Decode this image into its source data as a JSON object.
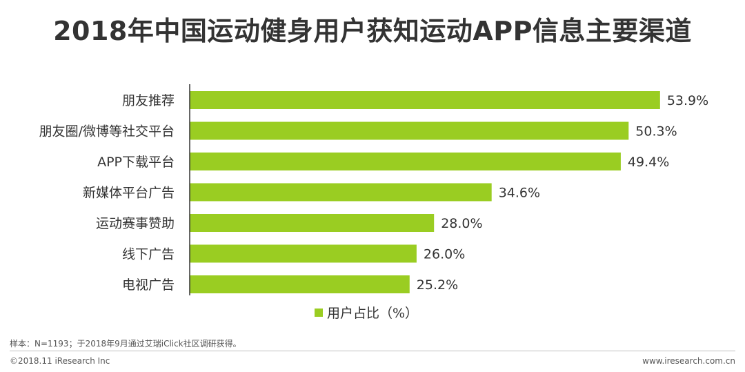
{
  "colors": {
    "bar": "#9ACD22",
    "axis": "#333333",
    "text": "#333333"
  },
  "chart_data": {
    "type": "bar",
    "orientation": "horizontal",
    "title": "2018年中国运动健身用户获知运动APP信息主要渠道",
    "categories": [
      "朋友推荐",
      "朋友圈/微博等社交平台",
      "APP下载平台",
      "新媒体平台广告",
      "运动赛事赞助",
      "线下广告",
      "电视广告"
    ],
    "series": [
      {
        "name": "用户占比（%）",
        "values": [
          53.9,
          50.3,
          49.4,
          34.6,
          28.0,
          26.0,
          25.2
        ]
      }
    ],
    "value_format": "{v}%",
    "xlim": [
      0,
      60
    ],
    "grid": false,
    "legend_position": "bottom-center"
  },
  "footnote": "样本：N=1193；于2018年9月通过艾瑞iClick社区调研获得。",
  "footer": {
    "copyright": "©2018.11 iResearch Inc",
    "website": "www.iresearch.com.cn"
  }
}
